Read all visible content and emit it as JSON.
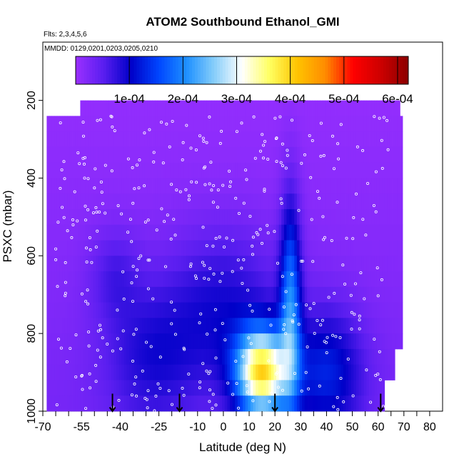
{
  "header": {
    "title": "ATOM2 Southbound Ethanol_GMI",
    "flights": "Flts: 2,3,4,5,6",
    "dates": "MMDD: 0129,0201,0203,0205,0210"
  },
  "chart_data": {
    "type": "heatmap",
    "title": "ATOM2 Southbound Ethanol_GMI",
    "xlabel": "Latitude (deg N)",
    "ylabel": "PSXC (mbar)",
    "xlim": [
      -70,
      85
    ],
    "ylim": [
      1000,
      50
    ],
    "y_reversed": true,
    "x_ticks": [
      -70,
      -55,
      -40,
      -25,
      -10,
      0,
      10,
      20,
      30,
      40,
      50,
      60,
      70,
      80
    ],
    "x_minor_ticks": [
      -65,
      -60,
      -50,
      -45,
      -35,
      -30,
      -20,
      -15,
      -5,
      5,
      15,
      25,
      35,
      45,
      55,
      65,
      75
    ],
    "y_ticks": [
      200,
      400,
      600,
      800,
      1000
    ],
    "colorbar": {
      "range": [
        0,
        0.00062
      ],
      "ticks": [
        0.0001,
        0.0002,
        0.0003,
        0.0004,
        0.0005,
        0.0006
      ],
      "tick_labels": [
        "1e-04",
        "2e-04",
        "3e-04",
        "4e-04",
        "5e-04",
        "6e-04"
      ],
      "colors": [
        "#9b30ff",
        "#5a1ef0",
        "#0000c8",
        "#0046ff",
        "#1e90ff",
        "#87cefa",
        "#ffffff",
        "#ffff60",
        "#ffc300",
        "#ff8c00",
        "#ff0000",
        "#cd0000",
        "#8b0000"
      ]
    },
    "pressure_levels": [
      200,
      240,
      280,
      320,
      360,
      400,
      440,
      480,
      520,
      560,
      600,
      640,
      680,
      720,
      760,
      800,
      840,
      880,
      920,
      960,
      1000
    ],
    "lat_range": [
      -70,
      70
    ],
    "arrow_latitudes": [
      -43,
      -17,
      20,
      61
    ],
    "sample_markers": "white open circles along flight tracks"
  }
}
